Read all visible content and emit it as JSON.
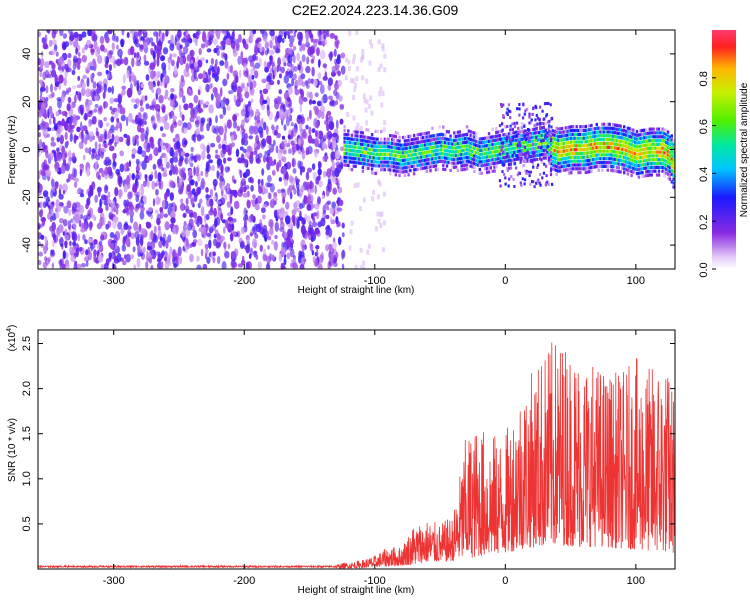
{
  "title": "C2E2.2024.223.14.36.G09",
  "chart_data": [
    {
      "type": "heatmap",
      "xlabel": "Height of straight line (km)",
      "ylabel": "Frequency (Hz)",
      "xlim": [
        -358,
        130
      ],
      "ylim": [
        -50,
        50
      ],
      "xticks": [
        -300,
        -200,
        -100,
        0,
        100
      ],
      "yticks": [
        -40,
        -20,
        0,
        20,
        40
      ],
      "noise_region_x": [
        -358,
        -124
      ],
      "signal_ridge": {
        "x": [
          -124,
          -110,
          -100,
          -90,
          -80,
          -70,
          -60,
          -50,
          -40,
          -30,
          -20,
          -10,
          0,
          10,
          20,
          30,
          35,
          40,
          50,
          60,
          70,
          80,
          90,
          100,
          110,
          120,
          126,
          130
        ],
        "y": [
          1,
          0,
          -1,
          -1,
          -2,
          -1,
          0,
          1,
          0,
          1,
          -1,
          0,
          1,
          2,
          3,
          4,
          1,
          0,
          1,
          1,
          2,
          2,
          1,
          -1,
          0,
          0,
          -2,
          -8
        ]
      },
      "colorbar": {
        "label": "Normalized spectral amplitude",
        "range": [
          0.0,
          1.0
        ],
        "ticks": [
          "0.0",
          "0.2",
          "0.4",
          "0.6",
          "0.8"
        ]
      }
    },
    {
      "type": "line",
      "xlabel": "Height of straight line (km)",
      "ylabel": "SNR (10 * v/v)",
      "multiplier_label": "(x10",
      "multiplier_exponent": "4",
      "xlim": [
        -358,
        130
      ],
      "ylim": [
        0,
        2.65
      ],
      "xticks": [
        -300,
        -200,
        -100,
        0,
        100
      ],
      "yticks": [
        "0.5",
        "1.0",
        "1.5",
        "2.0",
        "2.5"
      ],
      "line_color": "#ee3333",
      "envelope": {
        "x": [
          -358,
          -130,
          -110,
          -100,
          -90,
          -80,
          -70,
          -60,
          -50,
          -40,
          -30,
          -20,
          -10,
          0,
          10,
          20,
          30,
          40,
          50,
          60,
          70,
          80,
          90,
          100,
          110,
          120,
          130
        ],
        "base": [
          0.03,
          0.03,
          0.05,
          0.08,
          0.12,
          0.14,
          0.2,
          0.3,
          0.32,
          0.35,
          0.45,
          0.55,
          0.65,
          0.7,
          0.85,
          0.95,
          1.0,
          1.05,
          1.0,
          0.95,
          1.0,
          0.95,
          0.9,
          0.85,
          0.8,
          0.75,
          0.7
        ],
        "peak": [
          0.04,
          0.05,
          0.1,
          0.15,
          0.25,
          0.25,
          0.5,
          0.55,
          0.5,
          0.6,
          1.5,
          1.6,
          1.5,
          1.5,
          2.0,
          2.2,
          2.45,
          2.6,
          2.5,
          2.4,
          2.3,
          2.2,
          2.2,
          2.35,
          2.25,
          2.4,
          2.0
        ]
      }
    }
  ]
}
